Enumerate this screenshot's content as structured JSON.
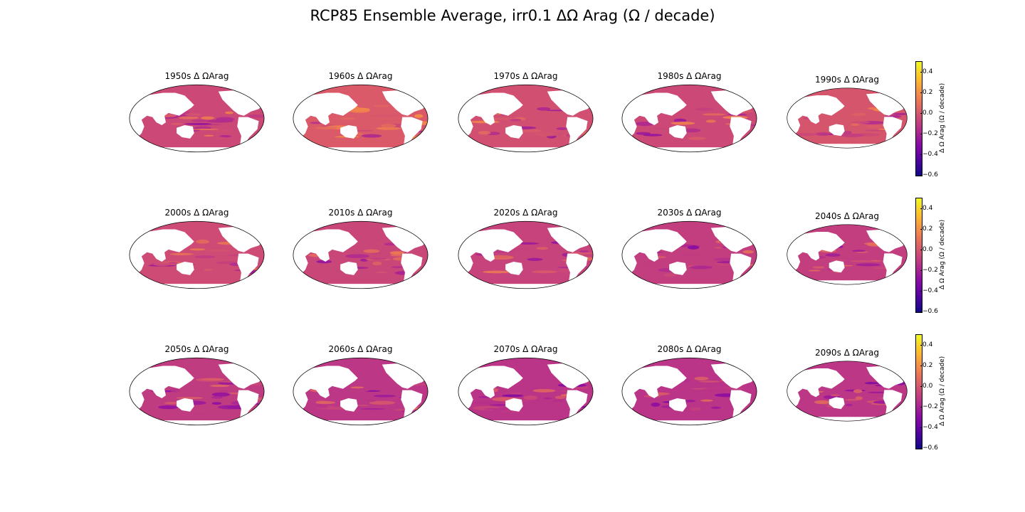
{
  "title": "RCP85 Ensemble Average, irr0.1 ΔΩ Arag (Ω / decade)",
  "panels": [
    {
      "label": "1950s Δ ΩArag",
      "mean_anomaly": -0.05
    },
    {
      "label": "1960s Δ ΩArag",
      "mean_anomaly": 0.02
    },
    {
      "label": "1970s Δ ΩArag",
      "mean_anomaly": -0.02
    },
    {
      "label": "1980s Δ ΩArag",
      "mean_anomaly": -0.05
    },
    {
      "label": "1990s Δ ΩArag",
      "mean_anomaly": 0.0
    },
    {
      "label": "2000s Δ ΩArag",
      "mean_anomaly": -0.04
    },
    {
      "label": "2010s Δ ΩArag",
      "mean_anomaly": -0.06
    },
    {
      "label": "2020s Δ ΩArag",
      "mean_anomaly": -0.07
    },
    {
      "label": "2030s Δ ΩArag",
      "mean_anomaly": -0.09
    },
    {
      "label": "2040s Δ ΩArag",
      "mean_anomaly": -0.09
    },
    {
      "label": "2050s Δ ΩArag",
      "mean_anomaly": -0.1
    },
    {
      "label": "2060s Δ ΩArag",
      "mean_anomaly": -0.12
    },
    {
      "label": "2070s Δ ΩArag",
      "mean_anomaly": -0.13
    },
    {
      "label": "2080s Δ ΩArag",
      "mean_anomaly": -0.13
    },
    {
      "label": "2090s Δ ΩArag",
      "mean_anomaly": -0.12
    }
  ],
  "colorbar": {
    "label": "Δ Ω Arag (Ω / decade)",
    "ticks": [
      "0.4",
      "0.2",
      "0.0",
      "−0.2",
      "−0.4",
      "−0.6"
    ],
    "range": [
      -0.6,
      0.5
    ],
    "colormap": "plasma"
  },
  "colors": {
    "land": "#ffffff",
    "ocean_base": "#cc4778"
  }
}
